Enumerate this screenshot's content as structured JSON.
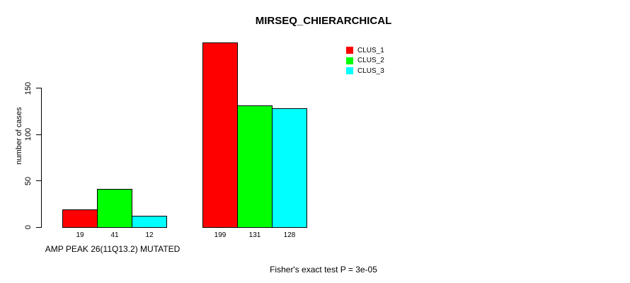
{
  "chart_data": {
    "type": "bar",
    "title": "MIRSEQ_CHIERARCHICAL",
    "ylabel": "number of cases",
    "xlabel": "",
    "ylim": [
      0,
      150
    ],
    "yticks": [
      0,
      50,
      100,
      150
    ],
    "grid": false,
    "legend_position": "top-right",
    "series": [
      {
        "name": "CLUS_1",
        "color": "#ff0000"
      },
      {
        "name": "CLUS_2",
        "color": "#00ff00"
      },
      {
        "name": "CLUS_3",
        "color": "#00ffff"
      }
    ],
    "categories": [
      "AMP PEAK 26(11Q13.2) MUTATED",
      ""
    ],
    "groups": [
      {
        "label": "AMP PEAK 26(11Q13.2) MUTATED",
        "values": [
          19,
          41,
          12
        ]
      },
      {
        "label": "",
        "values": [
          199,
          131,
          128
        ]
      }
    ],
    "bar_value_labels": [
      [
        "19",
        "41",
        "12"
      ],
      [
        "199",
        "131",
        "128"
      ]
    ],
    "annotation": "Fisher's exact test P = 3e-05"
  }
}
